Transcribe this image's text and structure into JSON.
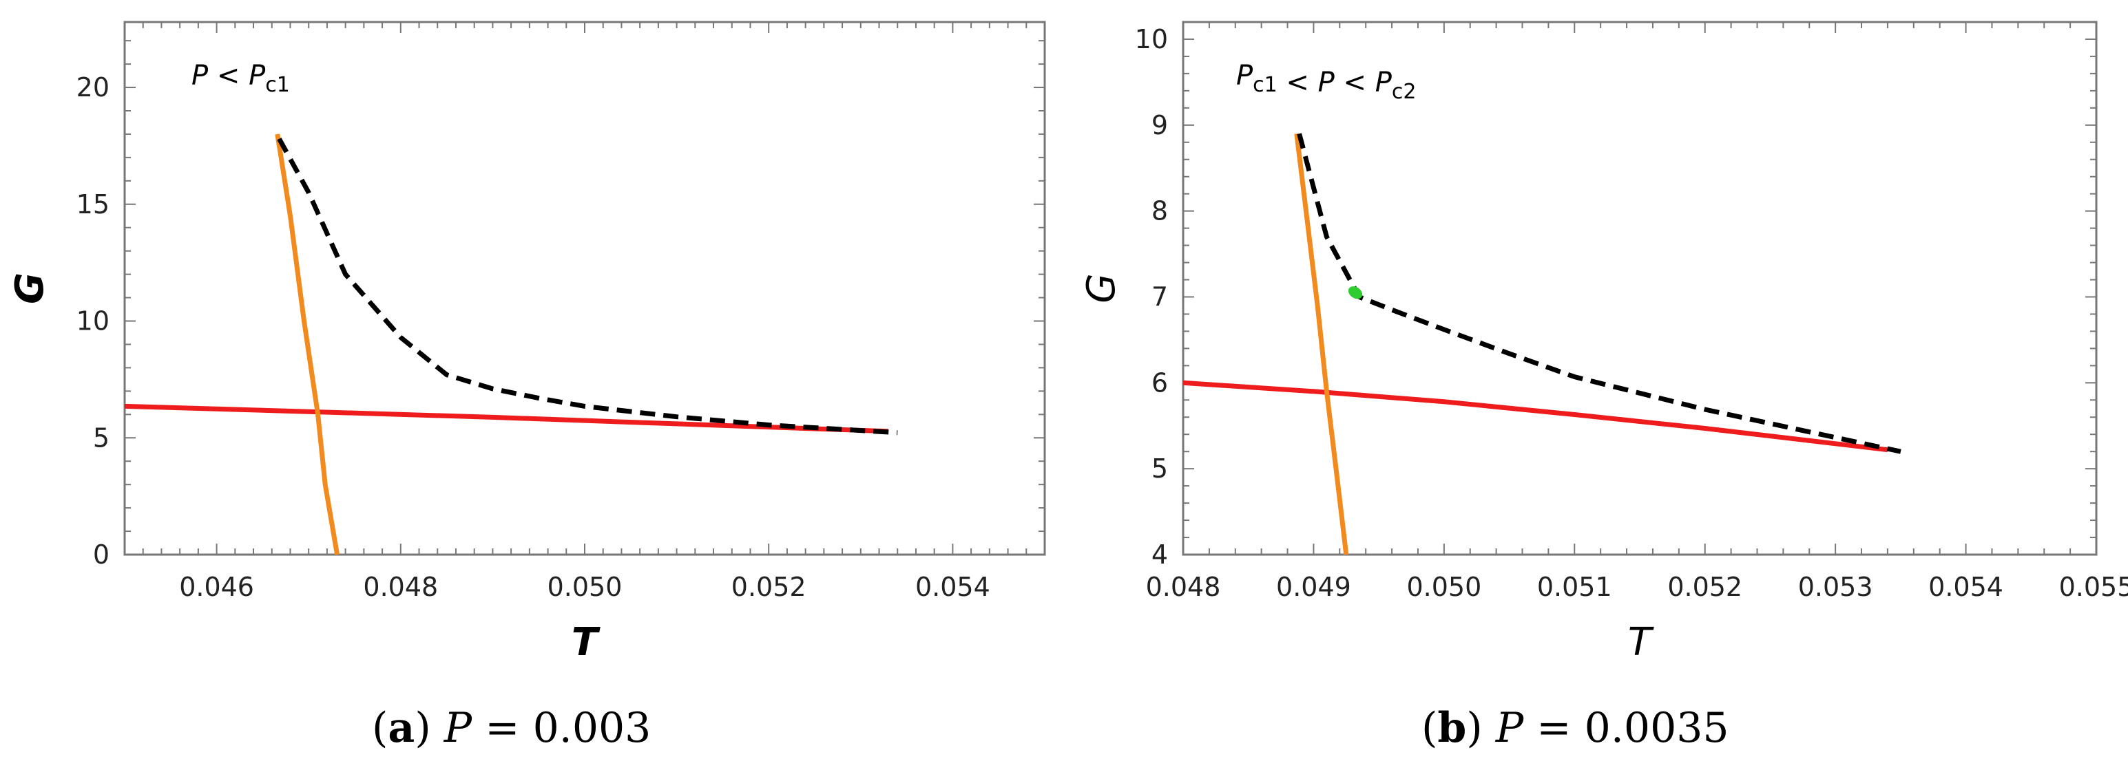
{
  "chart_data": [
    {
      "type": "line",
      "panel": "a",
      "caption_tag": "a",
      "caption_var": "P",
      "caption_value": "= 0.003",
      "annotation": "P < Pc1",
      "annotation_parts": [
        "P",
        " < ",
        "P",
        "c1"
      ],
      "xlabel": "T",
      "ylabel": "G",
      "xlim": [
        0.045,
        0.055
      ],
      "ylim": [
        0,
        22.8
      ],
      "x_ticks": [
        0.046,
        0.048,
        0.05,
        0.052,
        0.054
      ],
      "x_tick_labels": [
        "0.046",
        "0.048",
        "0.050",
        "0.052",
        "0.054"
      ],
      "y_ticks": [
        0,
        5,
        10,
        15,
        20
      ],
      "y_tick_labels": [
        "0",
        "5",
        "10",
        "15",
        "20"
      ],
      "series": [
        {
          "name": "red-branch",
          "color": "#ee1c1c",
          "style": "solid",
          "x": [
            0.045,
            0.047,
            0.049,
            0.051,
            0.0533
          ],
          "y": [
            6.35,
            6.12,
            5.88,
            5.6,
            5.28
          ]
        },
        {
          "name": "orange-branch",
          "color": "#f28a1e",
          "style": "solid",
          "x": [
            0.04666,
            0.0468,
            0.04695,
            0.0471,
            0.04718,
            0.04731
          ],
          "y": [
            18.0,
            14.5,
            10.0,
            6.0,
            3.0,
            0.0
          ]
        },
        {
          "name": "black-dashed-branch",
          "color": "#000000",
          "style": "dashed",
          "x": [
            0.04668,
            0.047,
            0.0474,
            0.048,
            0.0485,
            0.049,
            0.0495,
            0.05,
            0.051,
            0.052,
            0.0534
          ],
          "y": [
            17.8,
            15.5,
            12.0,
            9.3,
            7.7,
            7.1,
            6.7,
            6.35,
            5.9,
            5.55,
            5.22
          ]
        }
      ]
    },
    {
      "type": "line",
      "panel": "b",
      "caption_tag": "b",
      "caption_var": "P",
      "caption_value": "= 0.0035",
      "annotation": "Pc1 < P < Pc2",
      "annotation_parts": [
        "P",
        "c1",
        " < ",
        "P",
        " < ",
        "P",
        "c2"
      ],
      "xlabel": "T",
      "ylabel": "G",
      "xlim": [
        0.048,
        0.055
      ],
      "ylim": [
        4,
        10.2
      ],
      "x_ticks": [
        0.048,
        0.049,
        0.05,
        0.051,
        0.052,
        0.053,
        0.054,
        0.055
      ],
      "x_tick_labels": [
        "0.048",
        "0.049",
        "0.050",
        "0.051",
        "0.052",
        "0.053",
        "0.054",
        "0.055"
      ],
      "y_ticks": [
        4,
        5,
        6,
        7,
        8,
        9,
        10
      ],
      "y_tick_labels": [
        "4",
        "5",
        "6",
        "7",
        "8",
        "9",
        "10"
      ],
      "series": [
        {
          "name": "red-branch",
          "color": "#ee1c1c",
          "style": "solid",
          "x": [
            0.048,
            0.049,
            0.05,
            0.051,
            0.052,
            0.0534
          ],
          "y": [
            6.0,
            5.9,
            5.78,
            5.63,
            5.47,
            5.22
          ]
        },
        {
          "name": "orange-branch",
          "color": "#f28a1e",
          "style": "solid",
          "x": [
            0.04887,
            0.04895,
            0.04903,
            0.0491,
            0.04918,
            0.04925
          ],
          "y": [
            8.9,
            7.9,
            6.9,
            5.9,
            4.9,
            4.0
          ]
        },
        {
          "name": "black-dashed-branch",
          "color": "#000000",
          "style": "dashed",
          "x": [
            0.04889,
            0.0491,
            0.04935,
            0.0496,
            0.05,
            0.0505,
            0.051,
            0.052,
            0.0535
          ],
          "y": [
            8.9,
            7.7,
            7.0,
            6.85,
            6.62,
            6.34,
            6.07,
            5.69,
            5.2
          ]
        },
        {
          "name": "green-marker",
          "color": "#2ecc2e",
          "style": "marker",
          "x": [
            0.04932
          ],
          "y": [
            7.05
          ]
        }
      ]
    }
  ]
}
